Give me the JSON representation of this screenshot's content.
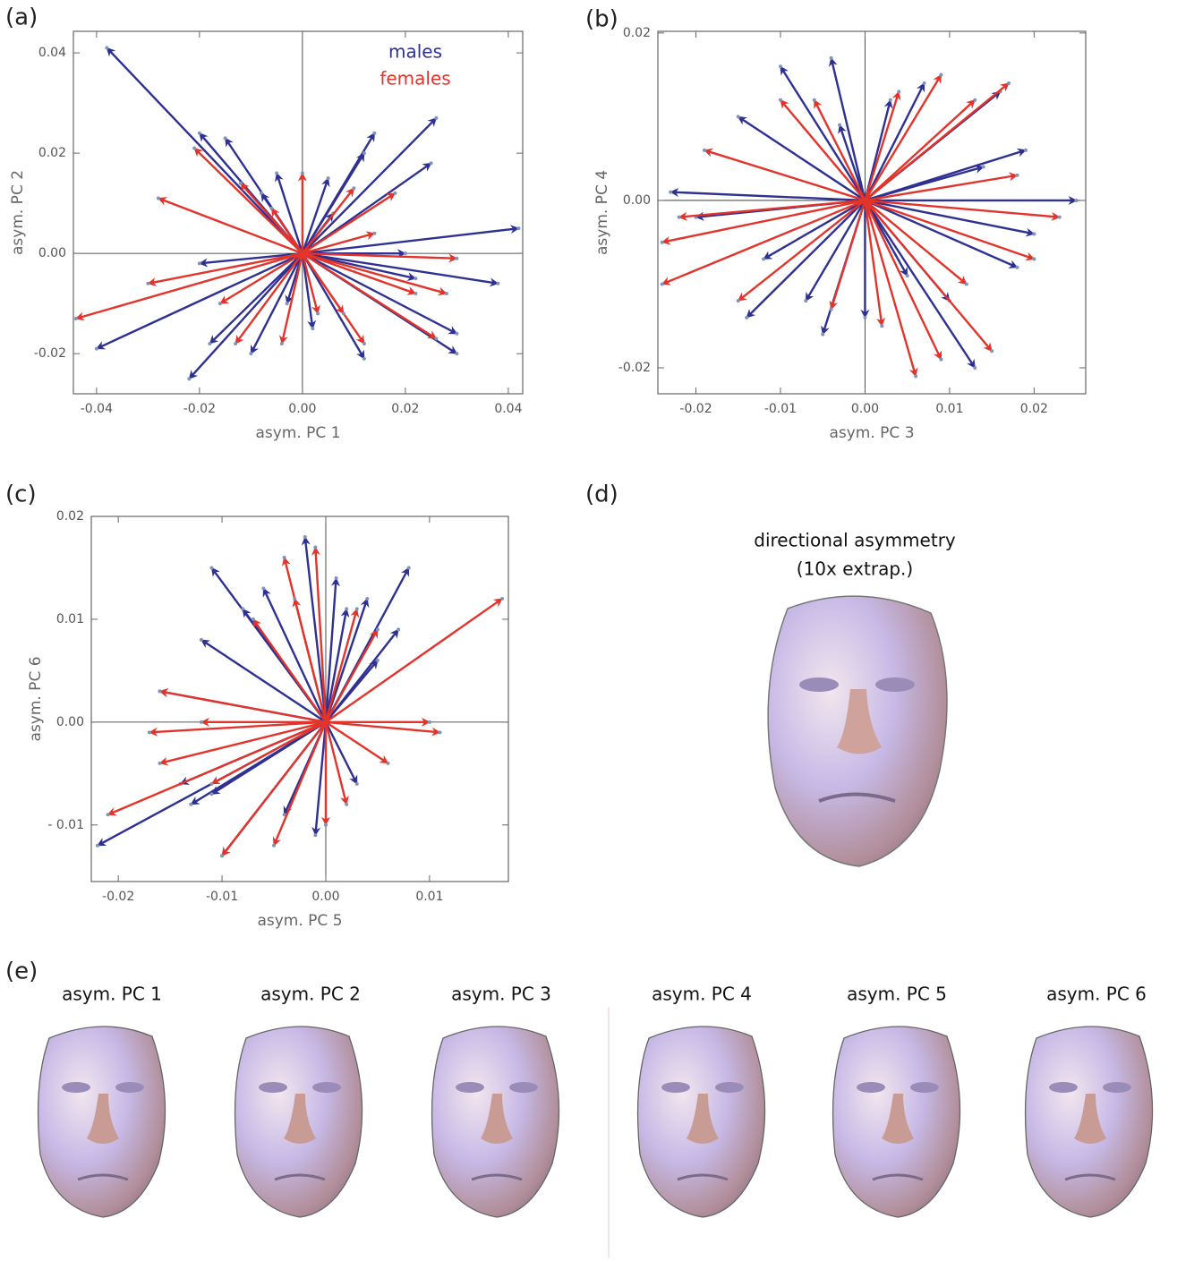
{
  "chart_data": [
    {
      "type": "arrow",
      "xlabel": "asym. PC 1",
      "ylabel": "asym. PC 2",
      "legend": "upper right",
      "xlim": [
        -0.0445,
        0.0428
      ],
      "ylim": [
        -0.028,
        0.0443
      ],
      "xticks": [
        {
          "value": -0.04,
          "label": "-0.04"
        },
        {
          "value": -0.02,
          "label": "-0.02"
        },
        {
          "value": 0,
          "label": "0.00"
        },
        {
          "value": 0.02,
          "label": "0.02"
        },
        {
          "value": 0.04,
          "label": "0.04"
        }
      ],
      "yticks": [
        {
          "value": 0.04,
          "label": "0.04"
        },
        {
          "value": 0.02,
          "label": "0.02"
        },
        {
          "value": 0,
          "label": "0.00"
        },
        {
          "value": -0.02,
          "label": "-0.02"
        }
      ],
      "series": [
        {
          "name": "males",
          "color": "#2e3192",
          "x": [
            -0.038,
            0.026,
            0.025,
            0.042,
            0.038,
            0.03,
            -0.04,
            -0.022,
            -0.02,
            -0.015,
            0.014,
            0.012,
            0.005,
            -0.005,
            0.03,
            0.012,
            0.002,
            -0.01,
            -0.018,
            -0.02,
            0.02,
            0.022,
            -0.008,
            0.006,
            -0.003
          ],
          "values": [
            0.041,
            0.027,
            0.018,
            0.005,
            -0.006,
            -0.016,
            -0.019,
            -0.025,
            0.024,
            0.023,
            0.024,
            0.02,
            0.015,
            0.016,
            -0.02,
            -0.021,
            -0.015,
            -0.02,
            -0.018,
            -0.002,
            0.0,
            -0.005,
            0.012,
            0.008,
            -0.01
          ]
        },
        {
          "name": "females",
          "color": "#e3342b",
          "x": [
            -0.044,
            -0.028,
            -0.021,
            -0.03,
            0.03,
            0.028,
            0.022,
            0.018,
            0.026,
            0.012,
            0.003,
            -0.004,
            -0.013,
            0.0,
            0.01,
            -0.012,
            0.014,
            -0.016,
            0.008,
            -0.006
          ],
          "values": [
            -0.013,
            0.011,
            0.021,
            -0.006,
            -0.001,
            -0.008,
            -0.008,
            0.012,
            -0.017,
            -0.018,
            -0.012,
            -0.018,
            -0.018,
            0.016,
            0.013,
            0.014,
            0.004,
            -0.01,
            -0.012,
            0.009
          ]
        }
      ]
    },
    {
      "type": "arrow",
      "xlabel": "asym. PC 3",
      "ylabel": "asym. PC 4",
      "xlim": [
        -0.0245,
        0.0261
      ],
      "ylim": [
        -0.0231,
        0.0202
      ],
      "xticks": [
        {
          "value": -0.02,
          "label": "-0.02"
        },
        {
          "value": -0.01,
          "label": "-0.01"
        },
        {
          "value": 0,
          "label": "0.00"
        },
        {
          "value": 0.01,
          "label": "0.01"
        },
        {
          "value": 0.02,
          "label": "0.02"
        }
      ],
      "yticks": [
        {
          "value": 0.02,
          "label": "0.02"
        },
        {
          "value": 0,
          "label": "0.00"
        },
        {
          "value": -0.02,
          "label": "-0.02"
        }
      ],
      "series": [
        {
          "color": "#2e3192",
          "x": [
            -0.023,
            0.025,
            0.016,
            0.018,
            0.013,
            -0.014,
            -0.005,
            -0.01,
            -0.004,
            0.0,
            0.007,
            -0.015,
            0.019,
            0.01,
            -0.007,
            0.003,
            -0.02,
            0.014,
            -0.012,
            0.005,
            -0.003,
            0.02
          ],
          "values": [
            0.001,
            0.0,
            0.013,
            -0.008,
            -0.02,
            -0.014,
            -0.016,
            0.016,
            0.017,
            -0.014,
            0.014,
            0.01,
            0.006,
            -0.012,
            -0.012,
            0.012,
            -0.002,
            0.004,
            -0.007,
            -0.009,
            0.009,
            -0.004
          ]
        },
        {
          "color": "#e3342b",
          "x": [
            -0.024,
            -0.024,
            0.023,
            0.017,
            0.013,
            0.009,
            0.006,
            0.009,
            0.015,
            -0.019,
            -0.015,
            -0.01,
            0.02,
            0.018,
            0.004,
            -0.006,
            -0.022,
            -0.004,
            0.002,
            0.012
          ],
          "values": [
            -0.01,
            -0.005,
            -0.002,
            0.014,
            0.012,
            0.015,
            -0.021,
            -0.019,
            -0.018,
            0.006,
            -0.012,
            0.012,
            -0.007,
            0.003,
            0.013,
            0.012,
            -0.002,
            -0.013,
            -0.015,
            -0.01
          ]
        }
      ]
    },
    {
      "type": "arrow",
      "xlabel": "asym. PC 5",
      "ylabel": "asym. PC 6",
      "xlim": [
        -0.0226,
        0.0176
      ],
      "ylim": [
        -0.0155,
        0.02
      ],
      "xticks": [
        {
          "value": -0.02,
          "label": "-0.02"
        },
        {
          "value": -0.01,
          "label": "-0.01"
        },
        {
          "value": 0,
          "label": "0.00"
        },
        {
          "value": 0.01,
          "label": "0.01"
        }
      ],
      "yticks": [
        {
          "value": 0.02,
          "label": "0.02"
        },
        {
          "value": 0.01,
          "label": "0.01"
        },
        {
          "value": 0,
          "label": "0.00"
        },
        {
          "value": -0.01,
          "label": "- 0.01"
        }
      ],
      "series": [
        {
          "color": "#2e3192",
          "x": [
            -0.022,
            -0.011,
            -0.002,
            0.008,
            0.007,
            -0.013,
            -0.01,
            -0.001,
            -0.011,
            -0.006,
            0.002,
            -0.012,
            0.004,
            -0.004,
            0.003,
            -0.016,
            -0.008,
            0.001,
            -0.014,
            0.005
          ],
          "values": [
            -0.012,
            0.015,
            0.018,
            0.015,
            0.009,
            -0.008,
            -0.013,
            -0.011,
            -0.007,
            0.013,
            0.011,
            0.008,
            0.012,
            -0.009,
            -0.006,
            0.003,
            0.011,
            0.014,
            -0.006,
            0.006
          ]
        },
        {
          "color": "#e3342b",
          "x": [
            -0.021,
            0.017,
            0.011,
            0.01,
            -0.01,
            -0.004,
            -0.001,
            -0.016,
            -0.017,
            -0.016,
            -0.005,
            0.002,
            0.003,
            -0.007,
            -0.003,
            0.0,
            -0.012,
            0.005,
            -0.011,
            0.006
          ],
          "values": [
            -0.009,
            0.012,
            -0.001,
            0.0,
            -0.013,
            0.016,
            0.017,
            -0.004,
            -0.001,
            0.003,
            -0.012,
            -0.008,
            0.011,
            0.01,
            0.012,
            -0.01,
            0.0,
            0.009,
            -0.006,
            -0.004
          ]
        }
      ]
    }
  ],
  "panel_labels": [
    "(a)",
    "(b)",
    "(c)",
    "(d)",
    "(e)"
  ],
  "directional_panel": {
    "title": "directional asymmetry",
    "subtitle": "(10x extrap.)"
  },
  "face_titles": [
    "asym. PC 1",
    "asym. PC 2",
    "asym. PC 3",
    "asym. PC 4",
    "asym. PC 5",
    "asym. PC 6"
  ]
}
